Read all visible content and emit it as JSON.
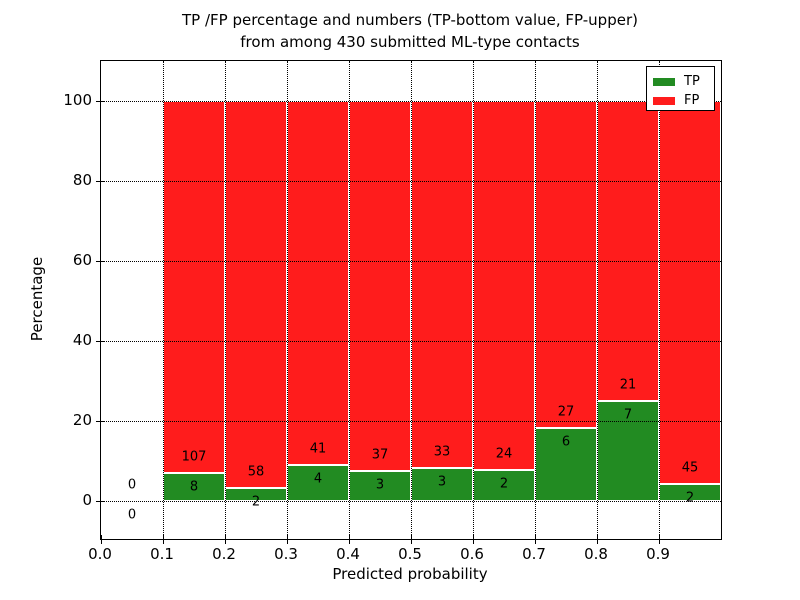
{
  "title": {
    "line1": "TP /FP percentage and numbers (TP-bottom value, FP-upper)",
    "line2": "from among 430 submitted ML-type contacts"
  },
  "axes": {
    "xlabel": "Predicted probability",
    "ylabel": "Percentage",
    "x_tick_labels": [
      "0.0",
      "0.1",
      "0.2",
      "0.3",
      "0.4",
      "0.5",
      "0.6",
      "0.7",
      "0.8",
      "0.9"
    ],
    "y_tick_labels": [
      "0",
      "20",
      "40",
      "60",
      "80",
      "100"
    ],
    "y_tick_values": [
      0,
      20,
      40,
      60,
      80,
      100
    ],
    "xlim": [
      0.0,
      1.0
    ],
    "ylim": [
      -10,
      110
    ],
    "grid_style": "dotted"
  },
  "legend": {
    "position": "upper-right",
    "entries": [
      {
        "label": "TP",
        "color": "#228b22"
      },
      {
        "label": "FP",
        "color": "#ff1c1c"
      }
    ]
  },
  "chart_data": {
    "type": "bar",
    "stacked": true,
    "normalized_to_percent": 100,
    "title": "TP /FP percentage and numbers (TP-bottom value, FP-upper) from among 430 submitted ML-type contacts",
    "xlabel": "Predicted probability",
    "ylabel": "Percentage",
    "total_contacts": 430,
    "bin_edges": [
      0.0,
      0.1,
      0.2,
      0.3,
      0.4,
      0.5,
      0.6,
      0.7,
      0.8,
      0.9,
      1.0
    ],
    "categories": [
      "0.0-0.1",
      "0.1-0.2",
      "0.2-0.3",
      "0.3-0.4",
      "0.4-0.5",
      "0.5-0.6",
      "0.6-0.7",
      "0.7-0.8",
      "0.8-0.9",
      "0.9-1.0"
    ],
    "series": [
      {
        "name": "TP",
        "color": "#228b22",
        "counts": [
          0,
          8,
          2,
          4,
          3,
          3,
          2,
          6,
          7,
          2
        ],
        "percent": [
          0,
          6.96,
          3.33,
          8.89,
          7.5,
          8.33,
          7.69,
          18.18,
          25.0,
          4.26
        ]
      },
      {
        "name": "FP",
        "color": "#ff1c1c",
        "counts": [
          0,
          107,
          58,
          41,
          37,
          33,
          24,
          27,
          21,
          45
        ],
        "percent": [
          0,
          93.04,
          96.67,
          91.11,
          92.5,
          91.67,
          92.31,
          81.82,
          75.0,
          95.74
        ]
      }
    ],
    "annotation_note": "FP count printed above TP count at each bin"
  }
}
